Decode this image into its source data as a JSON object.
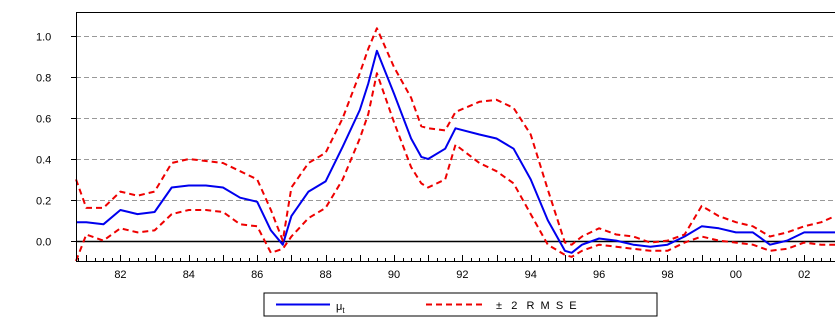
{
  "chart_data": {
    "type": "line",
    "title": "",
    "xlabel": "",
    "ylabel": "",
    "xlim": [
      1980.7,
      2002.9
    ],
    "ylim": [
      -0.1,
      1.12
    ],
    "x_ticks": [
      1982,
      1984,
      1986,
      1988,
      1990,
      1992,
      1994,
      1996,
      1998,
      2000,
      2002
    ],
    "x_tick_labels": [
      "82",
      "84",
      "86",
      "88",
      "90",
      "92",
      "94",
      "96",
      "98",
      "00",
      "02"
    ],
    "y_ticks": [
      0.0,
      0.2,
      0.4,
      0.6,
      0.8,
      1.0
    ],
    "y_tick_labels": [
      "0.0",
      "0.2",
      "0.4",
      "0.6",
      "0.8",
      "1.0"
    ],
    "grid": "horizontal-dashed",
    "legend_position": "bottom-center",
    "colors": {
      "mu": "#0000ee",
      "band": "#ee0000",
      "grid": "#999999",
      "axis": "#000000"
    },
    "series": [
      {
        "name": "μt",
        "style": "solid",
        "color": "#0000ee",
        "x": [
          1980.7,
          1981.0,
          1981.5,
          1982.0,
          1982.5,
          1983.0,
          1983.5,
          1984.0,
          1984.5,
          1985.0,
          1985.5,
          1986.0,
          1986.4,
          1986.75,
          1987.0,
          1987.5,
          1988.0,
          1988.5,
          1989.0,
          1989.25,
          1989.5,
          1990.0,
          1990.5,
          1990.8,
          1991.0,
          1991.5,
          1991.8,
          1992.5,
          1993.0,
          1993.5,
          1994.0,
          1994.5,
          1995.0,
          1995.2,
          1995.5,
          1996.0,
          1996.5,
          1997.0,
          1997.5,
          1998.0,
          1998.5,
          1999.0,
          1999.5,
          2000.0,
          2000.5,
          2001.0,
          2001.5,
          2002.0,
          2002.5,
          2002.9
        ],
        "values": [
          0.09,
          0.09,
          0.08,
          0.15,
          0.13,
          0.14,
          0.26,
          0.27,
          0.27,
          0.26,
          0.21,
          0.19,
          0.05,
          -0.02,
          0.12,
          0.24,
          0.29,
          0.46,
          0.64,
          0.77,
          0.93,
          0.72,
          0.5,
          0.41,
          0.4,
          0.45,
          0.55,
          0.52,
          0.5,
          0.45,
          0.3,
          0.1,
          -0.05,
          -0.06,
          -0.02,
          0.01,
          0.0,
          -0.02,
          -0.03,
          -0.02,
          0.02,
          0.07,
          0.06,
          0.04,
          0.04,
          -0.02,
          0.0,
          0.04,
          0.04,
          0.04
        ]
      },
      {
        "name": "± 2 RMSE",
        "style": "dashed",
        "color": "#ee0000",
        "band": "upper",
        "x": [
          1980.7,
          1981.0,
          1981.5,
          1982.0,
          1982.5,
          1983.0,
          1983.5,
          1984.0,
          1984.5,
          1985.0,
          1985.5,
          1986.0,
          1986.4,
          1986.75,
          1987.0,
          1987.5,
          1988.0,
          1988.5,
          1989.0,
          1989.25,
          1989.5,
          1990.0,
          1990.5,
          1990.8,
          1991.0,
          1991.5,
          1991.8,
          1992.5,
          1993.0,
          1993.5,
          1994.0,
          1994.5,
          1995.0,
          1995.2,
          1995.5,
          1996.0,
          1996.5,
          1997.0,
          1997.5,
          1998.0,
          1998.5,
          1999.0,
          1999.5,
          2000.0,
          2000.5,
          2001.0,
          2001.5,
          2002.0,
          2002.5,
          2002.9
        ],
        "values": [
          0.3,
          0.16,
          0.16,
          0.24,
          0.22,
          0.24,
          0.38,
          0.4,
          0.39,
          0.38,
          0.34,
          0.3,
          0.15,
          0.0,
          0.26,
          0.38,
          0.43,
          0.6,
          0.82,
          0.94,
          1.04,
          0.85,
          0.7,
          0.56,
          0.55,
          0.54,
          0.63,
          0.68,
          0.69,
          0.65,
          0.52,
          0.25,
          -0.01,
          -0.02,
          0.02,
          0.06,
          0.03,
          0.02,
          -0.01,
          0.0,
          0.03,
          0.17,
          0.12,
          0.09,
          0.07,
          0.02,
          0.04,
          0.07,
          0.09,
          0.12
        ]
      },
      {
        "name": "",
        "style": "dashed",
        "color": "#ee0000",
        "band": "lower",
        "x": [
          1980.7,
          1981.0,
          1981.5,
          1982.0,
          1982.5,
          1983.0,
          1983.5,
          1984.0,
          1984.5,
          1985.0,
          1985.5,
          1986.0,
          1986.4,
          1986.75,
          1987.0,
          1987.5,
          1988.0,
          1988.5,
          1989.0,
          1989.25,
          1989.5,
          1990.0,
          1990.5,
          1990.8,
          1991.0,
          1991.5,
          1991.8,
          1992.5,
          1993.0,
          1993.5,
          1994.0,
          1994.5,
          1995.0,
          1995.2,
          1995.5,
          1996.0,
          1996.5,
          1997.0,
          1997.5,
          1998.0,
          1998.5,
          1999.0,
          1999.5,
          2000.0,
          2000.5,
          2001.0,
          2001.5,
          2002.0,
          2002.5,
          2002.9
        ],
        "values": [
          -0.1,
          0.03,
          0.0,
          0.06,
          0.04,
          0.05,
          0.13,
          0.15,
          0.15,
          0.14,
          0.08,
          0.07,
          -0.06,
          -0.04,
          0.02,
          0.11,
          0.16,
          0.3,
          0.5,
          0.62,
          0.82,
          0.58,
          0.36,
          0.28,
          0.26,
          0.3,
          0.47,
          0.38,
          0.34,
          0.28,
          0.13,
          -0.02,
          -0.07,
          -0.08,
          -0.05,
          -0.02,
          -0.03,
          -0.04,
          -0.05,
          -0.05,
          -0.01,
          0.02,
          0.0,
          -0.01,
          -0.02,
          -0.05,
          -0.04,
          -0.01,
          -0.02,
          -0.02
        ]
      }
    ],
    "legend": [
      {
        "label": "μ",
        "subscript": "t",
        "style": "solid",
        "color": "#0000ee"
      },
      {
        "label": "±   2   R  M  S  E",
        "style": "dashed",
        "color": "#ee0000"
      }
    ]
  }
}
